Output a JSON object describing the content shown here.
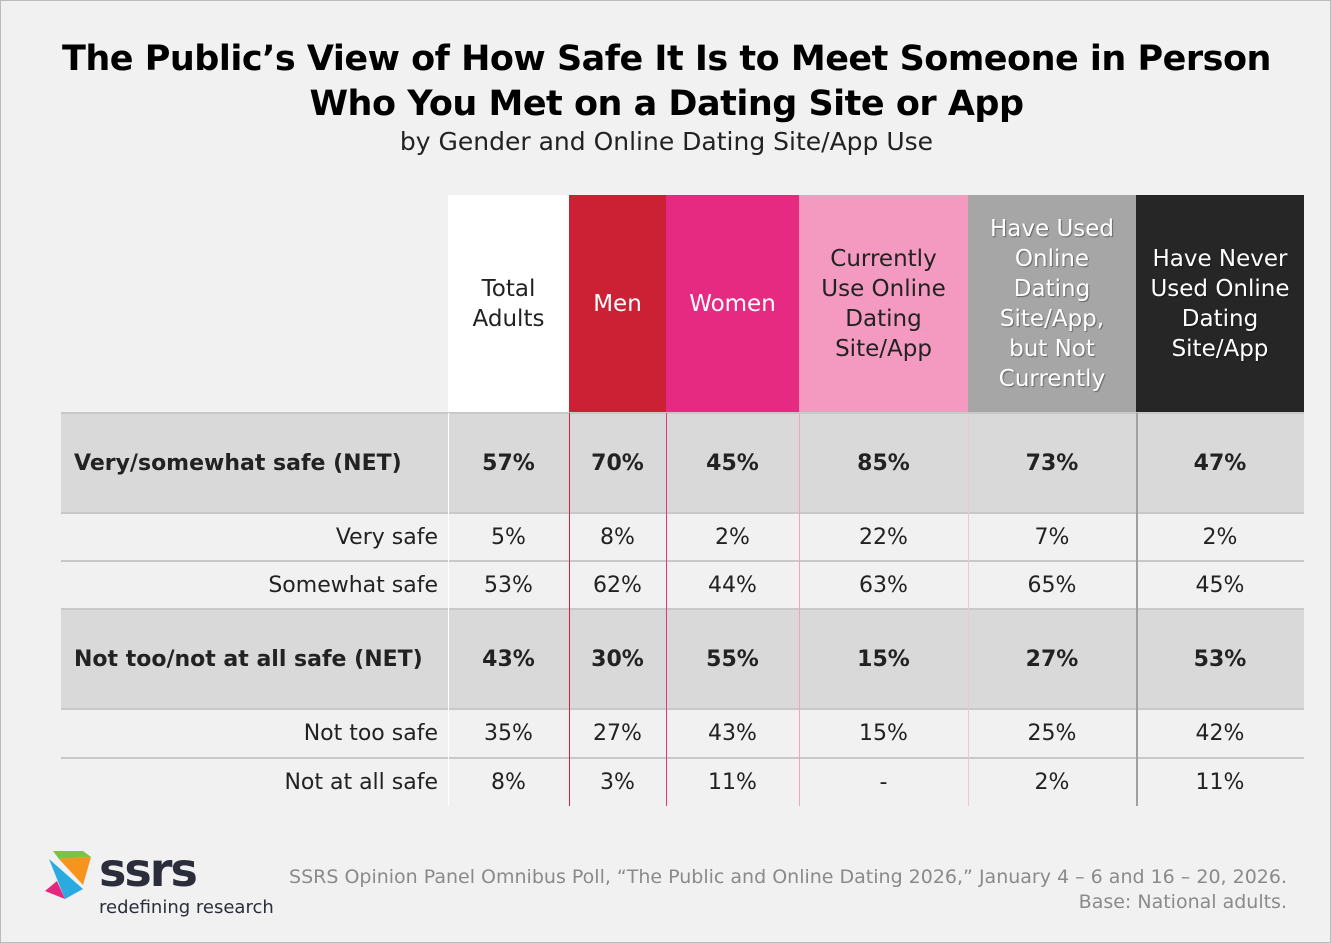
{
  "chart_data": {
    "type": "table",
    "title": [
      "The Public’s View of How Safe It Is to Meet Someone in Person",
      "Who You Met on a Dating Site or App"
    ],
    "subtitle": "by Gender and Online Dating Site/App Use",
    "columns": [
      {
        "label": [
          "Total",
          "Adults"
        ],
        "bg": "#ffffff",
        "fg": "#222222"
      },
      {
        "label": [
          "Men"
        ],
        "bg": "#cc2035",
        "fg": "#ffffff"
      },
      {
        "label": [
          "Women"
        ],
        "bg": "#e62a82",
        "fg": "#ffffff"
      },
      {
        "label": [
          "Currently",
          "Use Online",
          "Dating",
          "Site/App"
        ],
        "bg": "#f49ac1",
        "fg": "#222222"
      },
      {
        "label": [
          "Have Used",
          "Online",
          "Dating",
          "Site/App,",
          "but Not",
          "Currently"
        ],
        "bg": "#a6a6a6",
        "fg": "#ffffff"
      },
      {
        "label": [
          "Have Never",
          "Used Online",
          "Dating",
          "Site/App"
        ],
        "bg": "#262626",
        "fg": "#ffffff"
      }
    ],
    "rows": [
      {
        "label": "Very/somewhat safe (NET)",
        "net": true,
        "values": [
          "57%",
          "70%",
          "45%",
          "85%",
          "73%",
          "47%"
        ]
      },
      {
        "label": "Very safe",
        "net": false,
        "values": [
          "5%",
          "8%",
          "2%",
          "22%",
          "7%",
          "2%"
        ]
      },
      {
        "label": "Somewhat safe",
        "net": false,
        "values": [
          "53%",
          "62%",
          "44%",
          "63%",
          "65%",
          "45%"
        ]
      },
      {
        "label": "Not too/not at all safe (NET)",
        "net": true,
        "values": [
          "43%",
          "30%",
          "55%",
          "15%",
          "27%",
          "53%"
        ]
      },
      {
        "label": "Not too safe",
        "net": false,
        "values": [
          "35%",
          "27%",
          "43%",
          "15%",
          "25%",
          "42%"
        ]
      },
      {
        "label": "Not at all safe",
        "net": false,
        "values": [
          "8%",
          "3%",
          "11%",
          "-",
          "2%",
          "11%"
        ]
      }
    ]
  },
  "source": [
    "SSRS Opinion Panel Omnibus Poll, “The Public and Online Dating 2026,” January 4 – 6 and 16 – 20, 2026.",
    "Base: National adults."
  ],
  "logo": {
    "name": "ssrs",
    "tagline": "redefining research"
  }
}
